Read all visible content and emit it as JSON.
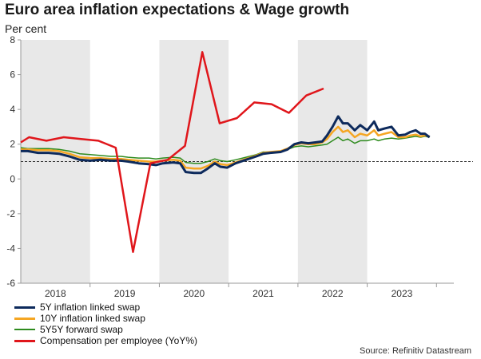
{
  "chart_data": {
    "type": "line",
    "title": "Euro area inflation expectations & Wage growth",
    "subtitle": "Per cent",
    "source": "Source: Refinitiv Datastream",
    "xlim": [
      2017.5,
      2023.75
    ],
    "ylim": [
      -6,
      8
    ],
    "yticks": [
      -6,
      -4,
      -2,
      0,
      2,
      4,
      6,
      8
    ],
    "xticks": [
      {
        "label": "2018",
        "x": 2018.0
      },
      {
        "label": "2019",
        "x": 2019.0
      },
      {
        "label": "2020",
        "x": 2020.0
      },
      {
        "label": "2021",
        "x": 2021.0
      },
      {
        "label": "2022",
        "x": 2022.0
      },
      {
        "label": "2023",
        "x": 2023.0
      }
    ],
    "shaded_years": [
      [
        2017.5,
        2018.5
      ],
      [
        2019.5,
        2020.5
      ],
      [
        2021.5,
        2022.5
      ]
    ],
    "reference_line": {
      "y": 1.0,
      "style": "dashed"
    },
    "series": [
      {
        "name": "5Y inflation linked swap",
        "color": "#0d2a5c",
        "points": [
          [
            2017.5,
            1.6
          ],
          [
            2017.6,
            1.6
          ],
          [
            2017.75,
            1.5
          ],
          [
            2017.9,
            1.5
          ],
          [
            2018.05,
            1.45
          ],
          [
            2018.2,
            1.3
          ],
          [
            2018.35,
            1.1
          ],
          [
            2018.5,
            1.05
          ],
          [
            2018.65,
            1.1
          ],
          [
            2018.8,
            1.05
          ],
          [
            2018.95,
            1.05
          ],
          [
            2019.05,
            1.0
          ],
          [
            2019.2,
            0.9
          ],
          [
            2019.35,
            0.85
          ],
          [
            2019.45,
            0.8
          ],
          [
            2019.55,
            0.9
          ],
          [
            2019.7,
            0.95
          ],
          [
            2019.8,
            0.9
          ],
          [
            2019.88,
            0.4
          ],
          [
            2020.0,
            0.35
          ],
          [
            2020.1,
            0.35
          ],
          [
            2020.2,
            0.6
          ],
          [
            2020.3,
            0.9
          ],
          [
            2020.38,
            0.7
          ],
          [
            2020.48,
            0.65
          ],
          [
            2020.6,
            0.9
          ],
          [
            2020.75,
            1.1
          ],
          [
            2020.9,
            1.3
          ],
          [
            2021.0,
            1.45
          ],
          [
            2021.1,
            1.5
          ],
          [
            2021.25,
            1.55
          ],
          [
            2021.35,
            1.7
          ],
          [
            2021.45,
            2.0
          ],
          [
            2021.55,
            2.1
          ],
          [
            2021.65,
            2.05
          ],
          [
            2021.75,
            2.1
          ],
          [
            2021.85,
            2.15
          ],
          [
            2021.92,
            2.5
          ],
          [
            2022.0,
            3.0
          ],
          [
            2022.08,
            3.6
          ],
          [
            2022.15,
            3.2
          ],
          [
            2022.22,
            3.2
          ],
          [
            2022.32,
            2.8
          ],
          [
            2022.4,
            3.1
          ],
          [
            2022.5,
            2.8
          ],
          [
            2022.6,
            3.3
          ],
          [
            2022.66,
            2.8
          ],
          [
            2022.75,
            2.9
          ],
          [
            2022.85,
            3.0
          ],
          [
            2022.95,
            2.5
          ],
          [
            2023.05,
            2.55
          ],
          [
            2023.12,
            2.7
          ],
          [
            2023.2,
            2.8
          ],
          [
            2023.27,
            2.6
          ],
          [
            2023.33,
            2.6
          ],
          [
            2023.4,
            2.4
          ]
        ]
      },
      {
        "name": "10Y inflation linked swap",
        "color": "#f5a623",
        "points": [
          [
            2017.5,
            1.7
          ],
          [
            2017.6,
            1.7
          ],
          [
            2017.75,
            1.65
          ],
          [
            2017.9,
            1.65
          ],
          [
            2018.05,
            1.6
          ],
          [
            2018.2,
            1.45
          ],
          [
            2018.35,
            1.25
          ],
          [
            2018.5,
            1.2
          ],
          [
            2018.65,
            1.2
          ],
          [
            2018.8,
            1.15
          ],
          [
            2018.95,
            1.15
          ],
          [
            2019.05,
            1.1
          ],
          [
            2019.2,
            1.05
          ],
          [
            2019.35,
            1.0
          ],
          [
            2019.45,
            1.0
          ],
          [
            2019.55,
            1.05
          ],
          [
            2019.7,
            1.1
          ],
          [
            2019.8,
            1.05
          ],
          [
            2019.88,
            0.65
          ],
          [
            2020.0,
            0.6
          ],
          [
            2020.1,
            0.6
          ],
          [
            2020.2,
            0.75
          ],
          [
            2020.3,
            1.0
          ],
          [
            2020.38,
            0.85
          ],
          [
            2020.48,
            0.8
          ],
          [
            2020.6,
            0.95
          ],
          [
            2020.75,
            1.15
          ],
          [
            2020.9,
            1.35
          ],
          [
            2021.0,
            1.5
          ],
          [
            2021.1,
            1.55
          ],
          [
            2021.25,
            1.6
          ],
          [
            2021.35,
            1.75
          ],
          [
            2021.45,
            1.95
          ],
          [
            2021.55,
            2.05
          ],
          [
            2021.65,
            2.0
          ],
          [
            2021.75,
            2.0
          ],
          [
            2021.85,
            2.1
          ],
          [
            2021.92,
            2.3
          ],
          [
            2022.0,
            2.7
          ],
          [
            2022.08,
            3.0
          ],
          [
            2022.15,
            2.7
          ],
          [
            2022.22,
            2.8
          ],
          [
            2022.32,
            2.4
          ],
          [
            2022.4,
            2.6
          ],
          [
            2022.5,
            2.5
          ],
          [
            2022.6,
            2.8
          ],
          [
            2022.66,
            2.5
          ],
          [
            2022.75,
            2.6
          ],
          [
            2022.85,
            2.7
          ],
          [
            2022.95,
            2.4
          ],
          [
            2023.05,
            2.4
          ],
          [
            2023.12,
            2.5
          ],
          [
            2023.2,
            2.55
          ],
          [
            2023.27,
            2.45
          ],
          [
            2023.33,
            2.5
          ],
          [
            2023.4,
            2.45
          ]
        ]
      },
      {
        "name": "5Y5Y forward swap",
        "color": "#2e8b1e",
        "points": [
          [
            2017.5,
            1.8
          ],
          [
            2017.6,
            1.75
          ],
          [
            2017.75,
            1.75
          ],
          [
            2017.9,
            1.75
          ],
          [
            2018.05,
            1.7
          ],
          [
            2018.2,
            1.6
          ],
          [
            2018.35,
            1.45
          ],
          [
            2018.5,
            1.4
          ],
          [
            2018.65,
            1.35
          ],
          [
            2018.8,
            1.3
          ],
          [
            2018.95,
            1.3
          ],
          [
            2019.05,
            1.25
          ],
          [
            2019.2,
            1.2
          ],
          [
            2019.35,
            1.2
          ],
          [
            2019.45,
            1.15
          ],
          [
            2019.55,
            1.2
          ],
          [
            2019.7,
            1.25
          ],
          [
            2019.8,
            1.2
          ],
          [
            2019.88,
            0.95
          ],
          [
            2020.0,
            0.9
          ],
          [
            2020.1,
            0.9
          ],
          [
            2020.2,
            1.0
          ],
          [
            2020.3,
            1.15
          ],
          [
            2020.38,
            1.05
          ],
          [
            2020.48,
            1.0
          ],
          [
            2020.6,
            1.1
          ],
          [
            2020.75,
            1.25
          ],
          [
            2020.9,
            1.4
          ],
          [
            2021.0,
            1.55
          ],
          [
            2021.1,
            1.55
          ],
          [
            2021.25,
            1.6
          ],
          [
            2021.35,
            1.7
          ],
          [
            2021.45,
            1.85
          ],
          [
            2021.55,
            1.9
          ],
          [
            2021.65,
            1.85
          ],
          [
            2021.75,
            1.9
          ],
          [
            2021.85,
            1.95
          ],
          [
            2021.92,
            2.0
          ],
          [
            2022.0,
            2.2
          ],
          [
            2022.08,
            2.4
          ],
          [
            2022.15,
            2.2
          ],
          [
            2022.22,
            2.3
          ],
          [
            2022.32,
            2.05
          ],
          [
            2022.4,
            2.2
          ],
          [
            2022.5,
            2.2
          ],
          [
            2022.6,
            2.3
          ],
          [
            2022.66,
            2.2
          ],
          [
            2022.75,
            2.3
          ],
          [
            2022.85,
            2.35
          ],
          [
            2022.95,
            2.3
          ],
          [
            2023.05,
            2.35
          ],
          [
            2023.12,
            2.4
          ],
          [
            2023.2,
            2.45
          ],
          [
            2023.27,
            2.4
          ],
          [
            2023.33,
            2.45
          ],
          [
            2023.4,
            2.4
          ]
        ]
      },
      {
        "name": "Compensation per employee (YoY%)",
        "color": "#e0161b",
        "points": [
          [
            2017.5,
            2.1
          ],
          [
            2017.62,
            2.4
          ],
          [
            2017.87,
            2.2
          ],
          [
            2018.12,
            2.4
          ],
          [
            2018.37,
            2.3
          ],
          [
            2018.62,
            2.2
          ],
          [
            2018.87,
            1.8
          ],
          [
            2019.12,
            -4.2
          ],
          [
            2019.37,
            0.9
          ],
          [
            2019.62,
            1.1
          ],
          [
            2019.87,
            1.9
          ],
          [
            2020.12,
            7.3
          ],
          [
            2020.37,
            3.2
          ],
          [
            2020.62,
            3.5
          ],
          [
            2020.87,
            4.4
          ],
          [
            2021.12,
            4.3
          ],
          [
            2021.37,
            3.8
          ],
          [
            2021.62,
            4.8
          ],
          [
            2021.87,
            5.2
          ]
        ]
      }
    ]
  }
}
